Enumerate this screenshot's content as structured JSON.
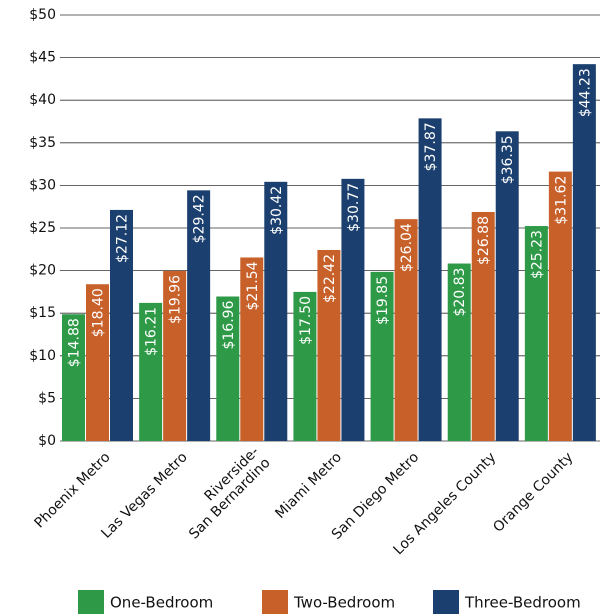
{
  "chart_data": {
    "type": "bar",
    "categories": [
      "Phoenix Metro",
      "Las Vegas Metro",
      "Riverside-\nSan Bernardino",
      "Miami Metro",
      "San Diego Metro",
      "Los Angeles County",
      "Orange County"
    ],
    "series": [
      {
        "name": "One-Bedroom",
        "color": "#2e9a47",
        "values": [
          14.88,
          16.21,
          16.96,
          17.5,
          19.85,
          20.83,
          25.23
        ],
        "value_labels": [
          "$14.88",
          "$16.21",
          "$16.96",
          "$17.50",
          "$19.85",
          "$20.83",
          "$25.23"
        ]
      },
      {
        "name": "Two-Bedroom",
        "color": "#c8602a",
        "values": [
          18.4,
          19.96,
          21.54,
          22.42,
          26.04,
          26.88,
          31.62
        ],
        "value_labels": [
          "$18.40",
          "$19.96",
          "$21.54",
          "$22.42",
          "$26.04",
          "$26.88",
          "$31.62"
        ]
      },
      {
        "name": "Three-Bedroom",
        "color": "#1b3f6e",
        "values": [
          27.12,
          29.42,
          30.42,
          30.77,
          37.87,
          36.35,
          44.23
        ],
        "value_labels": [
          "$27.12",
          "$29.42",
          "$30.42",
          "$30.77",
          "$37.87",
          "$36.35",
          "$44.23"
        ]
      }
    ],
    "ylim": [
      0,
      50
    ],
    "yticks": [
      {
        "value": 0,
        "label": "$0"
      },
      {
        "value": 5,
        "label": "$5"
      },
      {
        "value": 10,
        "label": "$10"
      },
      {
        "value": 15,
        "label": "$15"
      },
      {
        "value": 20,
        "label": "$20"
      },
      {
        "value": 25,
        "label": "$25"
      },
      {
        "value": 30,
        "label": "$30"
      },
      {
        "value": 35,
        "label": "$35"
      },
      {
        "value": 40,
        "label": "$40"
      },
      {
        "value": 45,
        "label": "$45"
      },
      {
        "value": 50,
        "label": "$50"
      }
    ],
    "grid": true
  }
}
